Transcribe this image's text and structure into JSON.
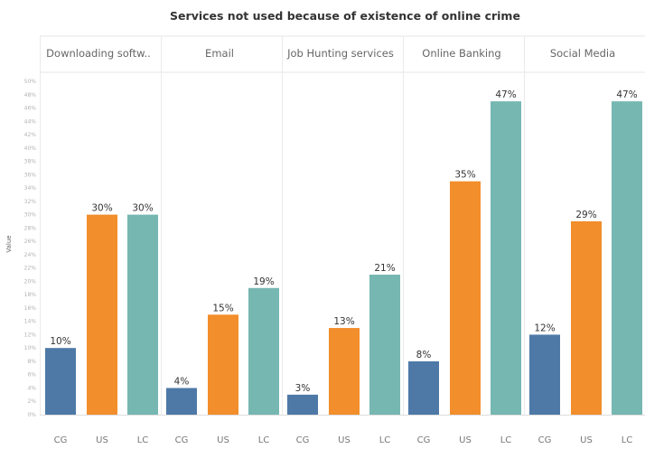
{
  "chart_data": {
    "type": "bar",
    "title": "Services not used because of existence of online crime",
    "ylabel": "Value",
    "xlabel": "",
    "ylim": [
      0,
      50
    ],
    "y_ticks": [
      "0%",
      "2%",
      "4%",
      "6%",
      "8%",
      "10%",
      "12%",
      "14%",
      "16%",
      "18%",
      "20%",
      "22%",
      "24%",
      "26%",
      "28%",
      "30%",
      "32%",
      "34%",
      "36%",
      "38%",
      "40%",
      "42%",
      "44%",
      "46%",
      "48%",
      "50%"
    ],
    "grid": false,
    "categories": [
      "CG",
      "US",
      "LC"
    ],
    "colors": {
      "CG": "#4e79a7",
      "US": "#f28e2b",
      "LC": "#76b7b2"
    },
    "panels": [
      {
        "name": "Downloading softw..",
        "values": [
          10,
          30,
          30
        ],
        "labels": [
          "10%",
          "30%",
          "30%"
        ]
      },
      {
        "name": "Email",
        "values": [
          4,
          15,
          19
        ],
        "labels": [
          "4%",
          "15%",
          "19%"
        ]
      },
      {
        "name": "Job Hunting services",
        "values": [
          3,
          13,
          21
        ],
        "labels": [
          "3%",
          "13%",
          "21%"
        ]
      },
      {
        "name": "Online Banking",
        "values": [
          8,
          35,
          47
        ],
        "labels": [
          "8%",
          "35%",
          "47%"
        ]
      },
      {
        "name": "Social Media",
        "values": [
          12,
          29,
          47
        ],
        "labels": [
          "12%",
          "29%",
          "47%"
        ]
      }
    ]
  }
}
